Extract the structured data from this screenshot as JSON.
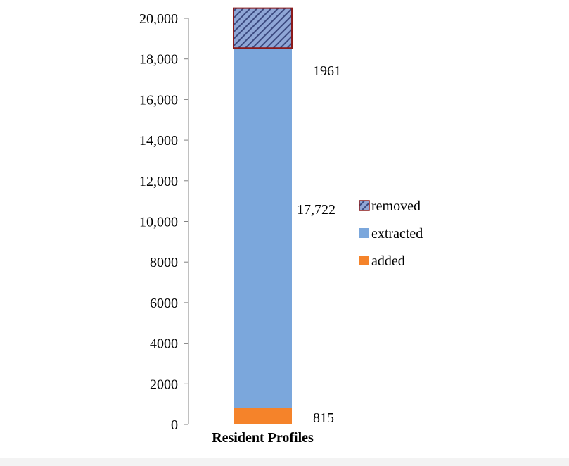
{
  "chart_data": {
    "type": "bar",
    "stacked": true,
    "categories": [
      "Resident Profiles"
    ],
    "series": [
      {
        "name": "added",
        "values": [
          815
        ],
        "color": "#f5832a",
        "label": "815"
      },
      {
        "name": "extracted",
        "values": [
          17722
        ],
        "color": "#7ba7dc",
        "label": "17,722"
      },
      {
        "name": "removed",
        "values": [
          1961
        ],
        "color": "#4a5a8c",
        "pattern": "diagonal-hatch",
        "edge_color": "#8b1a1a",
        "label": "1961"
      }
    ],
    "legend_order": [
      "removed",
      "extracted",
      "added"
    ],
    "ylim": [
      0,
      20000
    ],
    "yticks": [
      0,
      2000,
      4000,
      6000,
      8000,
      10000,
      12000,
      14000,
      16000,
      18000,
      20000
    ],
    "ytick_labels": [
      "0",
      "2000",
      "4000",
      "6000",
      "8000",
      "10,000",
      "12,000",
      "14,000",
      "16,000",
      "18,000",
      "20,000"
    ],
    "legend_position": "right",
    "grid": false,
    "title": "",
    "xlabel": "",
    "ylabel": ""
  }
}
